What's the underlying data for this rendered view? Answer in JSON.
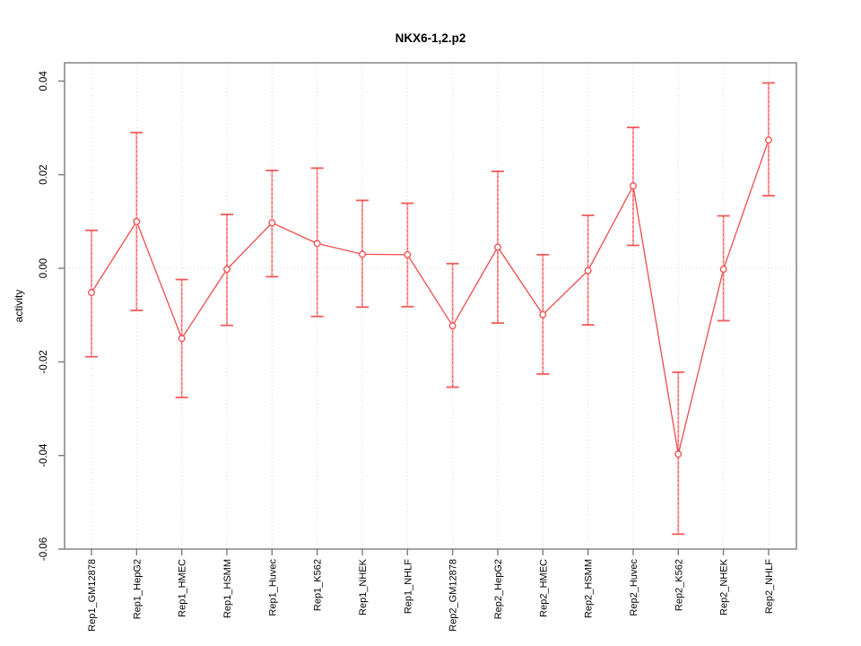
{
  "chart_data": {
    "type": "line",
    "title": "NKX6-1,2.p2",
    "xlabel": "",
    "ylabel": "activity",
    "legend": "none",
    "grid": {
      "vertical": "per-category-dotted",
      "horizontal": "zero-line-dotted"
    },
    "ylim": [
      -0.06,
      0.0439
    ],
    "yticks": [
      {
        "label": "0.04",
        "value": 0.04
      },
      {
        "label": "0.02",
        "value": 0.02
      },
      {
        "label": "0.00",
        "value": 0.0
      },
      {
        "label": "-0.02",
        "value": -0.02
      },
      {
        "label": "-0.04",
        "value": -0.04
      },
      {
        "label": "-0.06",
        "value": -0.06
      }
    ],
    "categories": [
      "Rep1_GM12878",
      "Rep1_HepG2",
      "Rep1_HMEC",
      "Rep1_HSMM",
      "Rep1_Huvec",
      "Rep1_K562",
      "Rep1_NHEK",
      "Rep1_NHLF",
      "Rep2_GM12878",
      "Rep2_HepG2",
      "Rep2_HMEC",
      "Rep2_HSMM",
      "Rep2_Huvec",
      "Rep2_K562",
      "Rep2_NHEK",
      "Rep2_NHLF"
    ],
    "series": [
      {
        "name": "activity",
        "marker": "open-circle",
        "values": [
          -0.0052,
          0.01,
          -0.015,
          -0.0002,
          0.0097,
          0.0053,
          0.003,
          0.0029,
          -0.0123,
          0.0045,
          -0.0099,
          -0.0005,
          0.0176,
          -0.0397,
          -0.0002,
          0.0274
        ],
        "error_high": [
          0.0081,
          0.029,
          -0.0024,
          0.0115,
          0.0209,
          0.0214,
          0.0145,
          0.0139,
          0.001,
          0.0207,
          0.0029,
          0.0113,
          0.0301,
          -0.0222,
          0.0112,
          0.0396
        ],
        "error_low": [
          -0.0189,
          -0.009,
          -0.0276,
          -0.0122,
          -0.0018,
          -0.0103,
          -0.0083,
          -0.0082,
          -0.0254,
          -0.0117,
          -0.0226,
          -0.0121,
          0.0049,
          -0.0568,
          -0.0112,
          0.0155
        ]
      }
    ],
    "colors": {
      "line": "#f04b4b",
      "marker_stroke": "#f04b4b",
      "marker_fill": "#ffffff",
      "error_bar_fill": "#ffa4a4",
      "error_bar_dash": "#e85252",
      "error_cap": "#f25b5b",
      "grid": "#d9d9d9",
      "box": "#8c8c8c",
      "tick": "#7d7d7d",
      "text": "#000000",
      "background": "#ffffff"
    }
  }
}
